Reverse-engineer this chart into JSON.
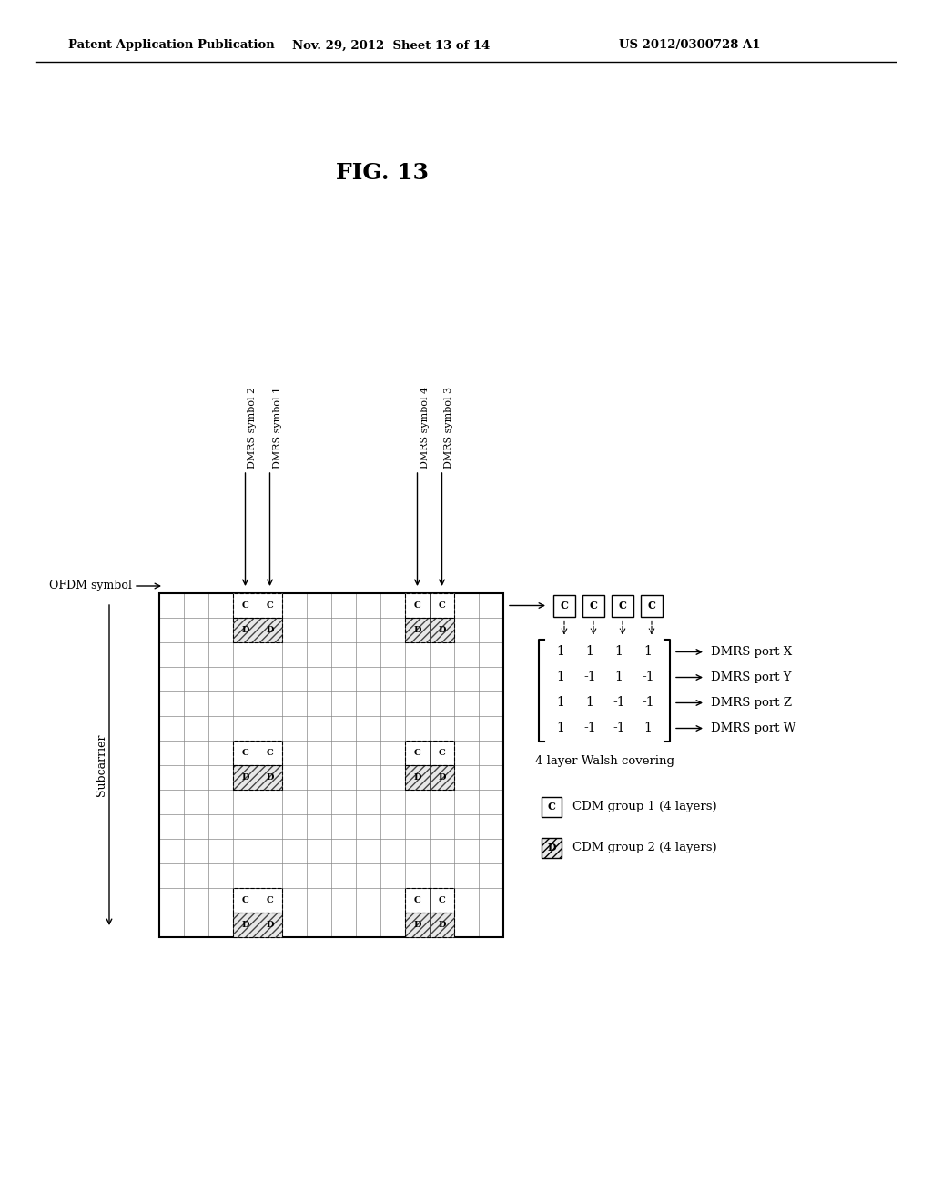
{
  "header_left": "Patent Application Publication",
  "header_mid": "Nov. 29, 2012  Sheet 13 of 14",
  "header_right": "US 2012/0300728 A1",
  "fig_label": "FIG. 13",
  "walsh_matrix": [
    [
      1,
      1,
      1,
      1
    ],
    [
      1,
      -1,
      1,
      -1
    ],
    [
      1,
      1,
      -1,
      -1
    ],
    [
      1,
      -1,
      -1,
      1
    ]
  ],
  "port_labels": [
    "DMRS port X",
    "DMRS port Y",
    "DMRS port Z",
    "DMRS port W"
  ],
  "walsh_label": "4 layer Walsh covering",
  "cdm1_label": "CDM group 1 (4 layers)",
  "cdm2_label": "CDM group 2 (4 layers)",
  "ofdm_label": "OFDM symbol",
  "subcarrier_label": "Subcarrier",
  "dmrs_col_labels": [
    "DMRS symbol 2",
    "DMRS symbol 1",
    "DMRS symbol 4",
    "DMRS symbol 3"
  ],
  "background_color": "#ffffff"
}
